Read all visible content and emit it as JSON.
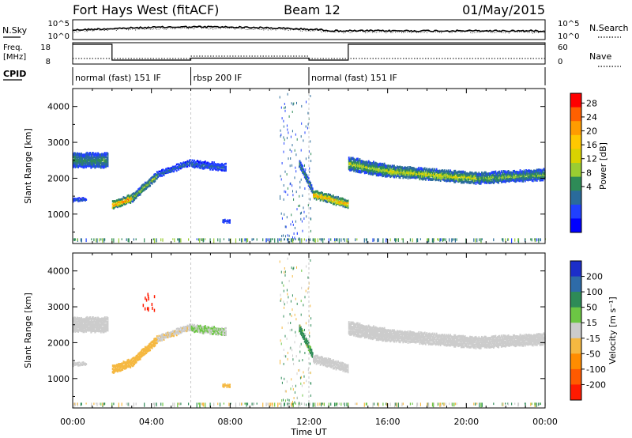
{
  "header": {
    "station": "Fort Hays West (fitACF)",
    "beam": "Beam 12",
    "date": "01/May/2015"
  },
  "noise_panel": {
    "left_label": "N.Sky",
    "right_label": "N.Search",
    "left_ticks": [
      "10^5",
      "10^0"
    ],
    "right_ticks": [
      "10^5",
      "10^0"
    ]
  },
  "freq_panel": {
    "left_label_line1": "Freq.",
    "left_label_line2": "[MHz]",
    "left_ticks": [
      "18",
      "8"
    ],
    "right_ticks": [
      "60",
      "0"
    ],
    "right_label": "Nave"
  },
  "cpid": {
    "label": "CPID",
    "segments": [
      {
        "name": "normal (fast) 151 IF",
        "start": 0,
        "end": 6
      },
      {
        "name": "rbsp 200 IF",
        "start": 6,
        "end": 12
      },
      {
        "name": "normal (fast) 151 IF",
        "start": 12,
        "end": 24
      }
    ]
  },
  "x_axis": {
    "label": "Time UT",
    "ticks": [
      "00:00",
      "04:00",
      "08:00",
      "12:00",
      "16:00",
      "20:00",
      "00:00"
    ]
  },
  "power_panel": {
    "ylabel": "Slant Range [km]",
    "yticks": [
      "4000",
      "3000",
      "2000",
      "1000"
    ],
    "colorbar_title": "Power [dB]",
    "colorbar_ticks": [
      "28",
      "24",
      "20",
      "16",
      "12",
      "8",
      "4"
    ],
    "colorbar_colors": [
      "#ff0000",
      "#ff6000",
      "#ff9c00",
      "#ffc800",
      "#d9d200",
      "#9acd32",
      "#2e8b57",
      "#2a6b9b",
      "#2040ff",
      "#0000ff"
    ]
  },
  "velocity_panel": {
    "ylabel": "Slant Range [km]",
    "yticks": [
      "4000",
      "3000",
      "2000",
      "1000"
    ],
    "colorbar_title": "Velocity [m s⁻¹]",
    "colorbar_ticks": [
      "200",
      "100",
      "50",
      "15",
      "-15",
      "-50",
      "-100",
      "-200"
    ],
    "colorbar_colors": [
      "#1c2ec9",
      "#2e6ba8",
      "#2e8b57",
      "#6cc644",
      "#cccccc",
      "#f5b841",
      "#ff8c00",
      "#ff5a00",
      "#ff1a00"
    ]
  },
  "chart_data": {
    "type": "heatmap",
    "x_range_hours": [
      0,
      24
    ],
    "y_range_km": [
      180,
      4500
    ],
    "freq_mhz": [
      {
        "start": 0,
        "end": 2,
        "value": 18
      },
      {
        "start": 2,
        "end": 6,
        "value": 10
      },
      {
        "start": 6,
        "end": 12,
        "value": 11
      },
      {
        "start": 12,
        "end": 14,
        "value": 10
      },
      {
        "start": 14,
        "end": 24,
        "value": 18
      }
    ],
    "echo_bands": [
      {
        "t0": 0.0,
        "t1": 1.8,
        "r0": 2500,
        "r1": 2500,
        "w": 400,
        "pow": 10,
        "vel": -5
      },
      {
        "t0": 0.0,
        "t1": 0.7,
        "r0": 1400,
        "r1": 1400,
        "w": 80,
        "pow": 6,
        "vel": -5
      },
      {
        "t0": 2.0,
        "t1": 3.0,
        "r0": 1250,
        "r1": 1450,
        "w": 220,
        "pow": 24,
        "vel": -30
      },
      {
        "t0": 3.0,
        "t1": 4.3,
        "r0": 1450,
        "r1": 2100,
        "w": 200,
        "pow": 14,
        "vel": -25
      },
      {
        "t0": 4.3,
        "t1": 6.0,
        "r0": 2100,
        "r1": 2450,
        "w": 150,
        "pow": 7,
        "vel": -10
      },
      {
        "t0": 6.0,
        "t1": 7.8,
        "r0": 2400,
        "r1": 2300,
        "w": 180,
        "pow": 6,
        "vel": 5
      },
      {
        "t0": 7.6,
        "t1": 8.0,
        "r0": 800,
        "r1": 800,
        "w": 60,
        "pow": 6,
        "vel": -40
      },
      {
        "t0": 11.5,
        "t1": 12.2,
        "r0": 2400,
        "r1": 1600,
        "w": 200,
        "pow": 10,
        "vel": 20
      },
      {
        "t0": 12.2,
        "t1": 14.0,
        "r0": 1550,
        "r1": 1280,
        "w": 220,
        "pow": 22,
        "vel": -5
      },
      {
        "t0": 14.0,
        "t1": 16.0,
        "r0": 2400,
        "r1": 2200,
        "w": 350,
        "pow": 14,
        "vel": -5
      },
      {
        "t0": 16.0,
        "t1": 20.5,
        "r0": 2200,
        "r1": 2000,
        "w": 300,
        "pow": 16,
        "vel": -5
      },
      {
        "t0": 20.5,
        "t1": 24.0,
        "r0": 2000,
        "r1": 2100,
        "w": 300,
        "pow": 12,
        "vel": -5
      }
    ]
  }
}
